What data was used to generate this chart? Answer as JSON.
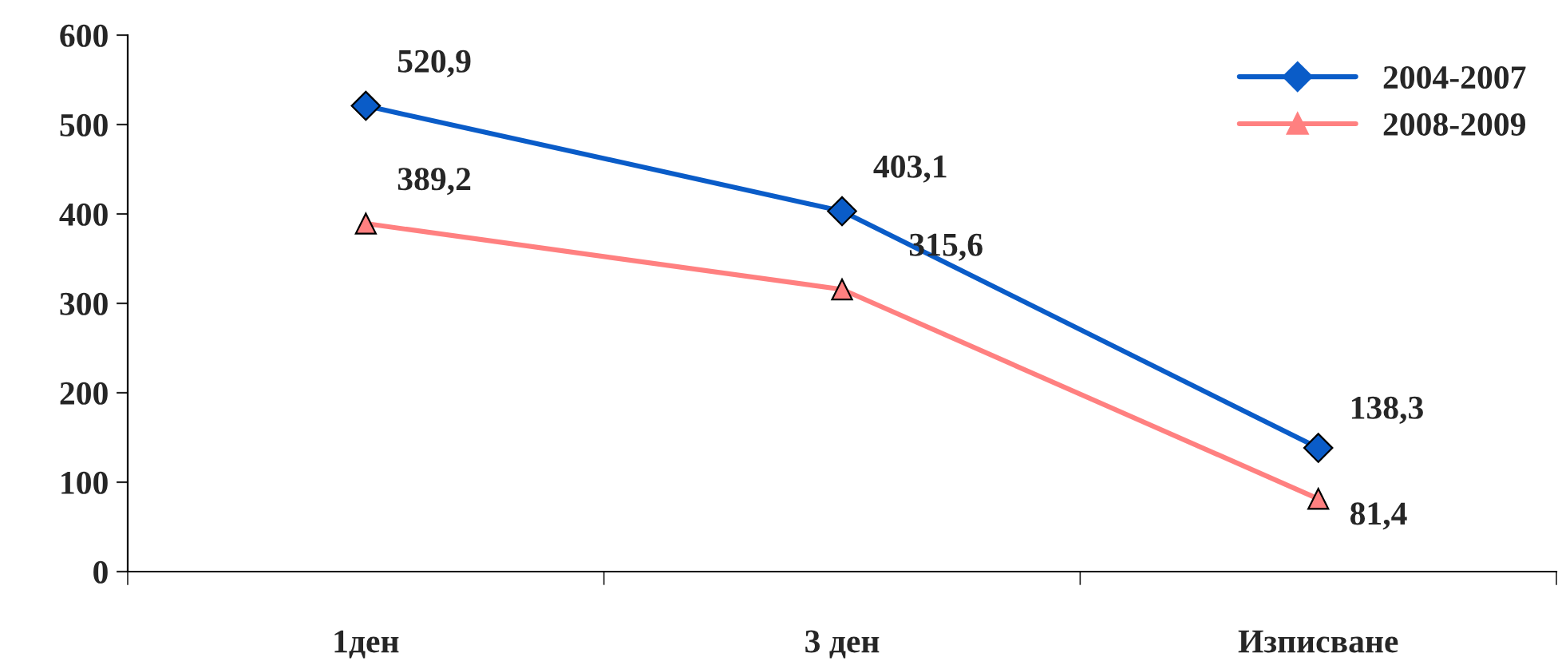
{
  "chart_data": {
    "type": "line",
    "categories": [
      "1ден",
      "3 ден",
      "Изписване"
    ],
    "series": [
      {
        "name": "2004-2007",
        "color": "#0a5cc8",
        "marker": "diamond",
        "values": [
          520.9,
          403.1,
          138.3
        ],
        "value_labels": [
          "520,9",
          "403,1",
          "138,3"
        ]
      },
      {
        "name": "2008-2009",
        "color": "#ff8080",
        "marker": "triangle",
        "values": [
          389.2,
          315.6,
          81.4
        ],
        "value_labels": [
          "389,2",
          "315,6",
          "81,4"
        ]
      }
    ],
    "ylim": [
      0,
      600
    ],
    "yticks": [
      0,
      100,
      200,
      300,
      400,
      500,
      600
    ],
    "grid": false,
    "legend": "top right"
  }
}
